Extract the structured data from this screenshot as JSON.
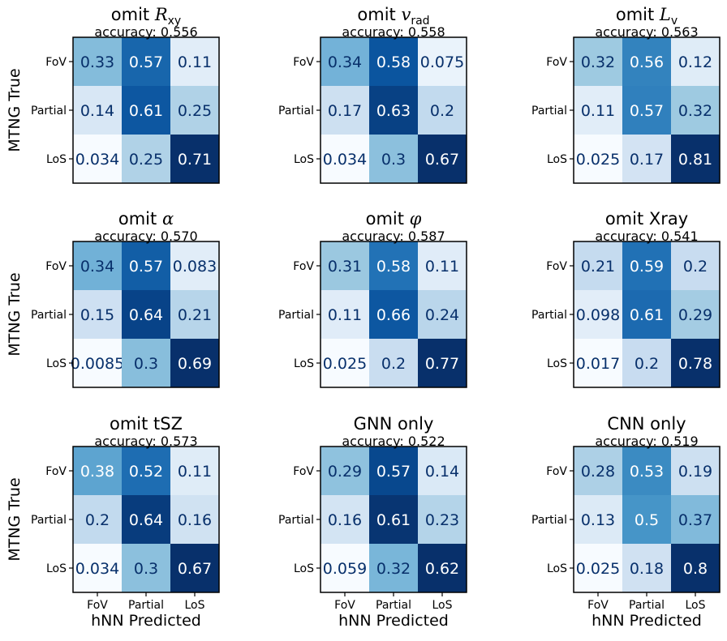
{
  "chart_data": {
    "type": "heatmap",
    "colormap": "Blues",
    "row_labels": [
      "FoV",
      "Partial",
      "LoS"
    ],
    "col_labels": [
      "FoV",
      "Partial",
      "LoS"
    ],
    "ylabel": "MTNG True",
    "xlabel": "hNN Predicted",
    "panels": [
      {
        "title": "omit R",
        "title_sub": "xy",
        "title_italic": true,
        "accuracy": "accuracy: 0.556",
        "values": [
          [
            0.33,
            0.57,
            0.11
          ],
          [
            0.14,
            0.61,
            0.25
          ],
          [
            0.034,
            0.25,
            0.71
          ]
        ]
      },
      {
        "title": "omit v",
        "title_sub": "rad",
        "title_italic": true,
        "accuracy": "accuracy: 0.558",
        "values": [
          [
            0.34,
            0.58,
            0.075
          ],
          [
            0.17,
            0.63,
            0.2
          ],
          [
            0.034,
            0.3,
            0.67
          ]
        ]
      },
      {
        "title": "omit L",
        "title_sub": "v",
        "title_italic": true,
        "accuracy": "accuracy: 0.563",
        "values": [
          [
            0.32,
            0.56,
            0.12
          ],
          [
            0.11,
            0.57,
            0.32
          ],
          [
            0.025,
            0.17,
            0.81
          ]
        ]
      },
      {
        "title": "omit α",
        "title_sub": "",
        "title_italic": true,
        "accuracy": "accuracy: 0.570",
        "values": [
          [
            0.34,
            0.57,
            0.083
          ],
          [
            0.15,
            0.64,
            0.21
          ],
          [
            0.0085,
            0.3,
            0.69
          ]
        ]
      },
      {
        "title": "omit φ",
        "title_sub": "",
        "title_italic": true,
        "accuracy": "accuracy: 0.587",
        "values": [
          [
            0.31,
            0.58,
            0.11
          ],
          [
            0.11,
            0.66,
            0.24
          ],
          [
            0.025,
            0.2,
            0.77
          ]
        ]
      },
      {
        "title": "omit Xray",
        "title_sub": "",
        "title_italic": false,
        "accuracy": "accuracy: 0.541",
        "values": [
          [
            0.21,
            0.59,
            0.2
          ],
          [
            0.098,
            0.61,
            0.29
          ],
          [
            0.017,
            0.2,
            0.78
          ]
        ]
      },
      {
        "title": "omit tSZ",
        "title_sub": "",
        "title_italic": false,
        "accuracy": "accuracy: 0.573",
        "values": [
          [
            0.38,
            0.52,
            0.11
          ],
          [
            0.2,
            0.64,
            0.16
          ],
          [
            0.034,
            0.3,
            0.67
          ]
        ]
      },
      {
        "title": "GNN only",
        "title_sub": "",
        "title_italic": false,
        "accuracy": "accuracy: 0.522",
        "values": [
          [
            0.29,
            0.57,
            0.14
          ],
          [
            0.16,
            0.61,
            0.23
          ],
          [
            0.059,
            0.32,
            0.62
          ]
        ]
      },
      {
        "title": "CNN only",
        "title_sub": "",
        "title_italic": false,
        "accuracy": "accuracy: 0.519",
        "values": [
          [
            0.28,
            0.53,
            0.19
          ],
          [
            0.13,
            0.5,
            0.37
          ],
          [
            0.025,
            0.18,
            0.8
          ]
        ]
      }
    ]
  }
}
